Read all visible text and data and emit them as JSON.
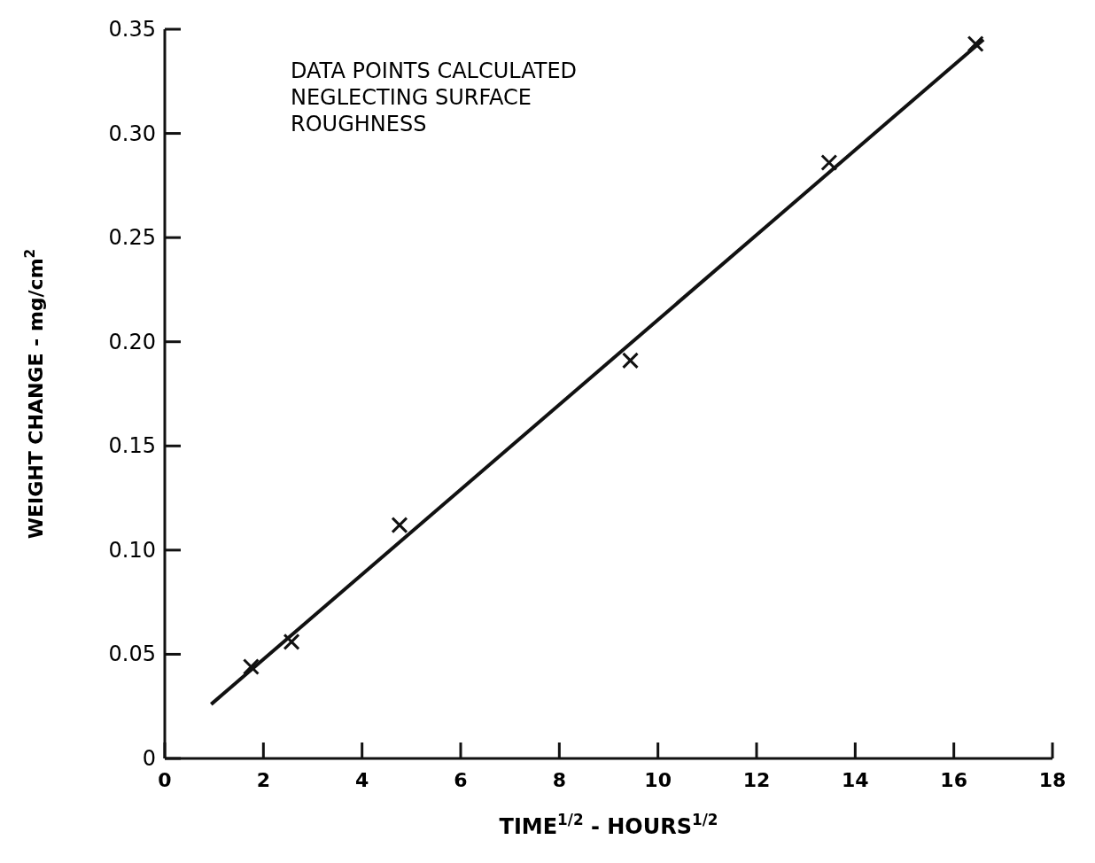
{
  "chart_data": {
    "type": "scatter",
    "xlabel": "TIME$^{1/2}$ - HOURS$^{1/2}$",
    "ylabel": "WEIGHT CHANGE - mg/cm$^{2}$",
    "annotations": [
      "DATA POINTS CALCULATED\nNEGLECTING SURFACE\nROUGHNESS"
    ],
    "xlim": [
      0,
      18
    ],
    "xticks": [
      0,
      2,
      4,
      6,
      8,
      10,
      12,
      14,
      16,
      18
    ],
    "ylim": [
      0,
      0.35
    ],
    "yticks": [
      0,
      0.05,
      {
        "value": 0.1,
        "label": "0.10"
      },
      0.15,
      {
        "value": 0.2,
        "label": "0.20"
      },
      0.25,
      {
        "value": 0.3,
        "label": "0.30"
      },
      0.35
    ],
    "grid": false,
    "series": [
      {
        "color": "#111111",
        "marker": "cross",
        "x": [
          1.75,
          2.57,
          4.76,
          9.44,
          13.47,
          16.44
        ],
        "values": [
          0.044,
          0.056,
          0.112,
          0.191,
          0.286,
          0.343
        ]
      },
      {
        "type": "line",
        "color": "#111111",
        "line_style": "solid",
        "marker": "none",
        "x": [
          0.94,
          16.6
        ],
        "values": [
          0.026,
          0.345
        ]
      }
    ]
  }
}
